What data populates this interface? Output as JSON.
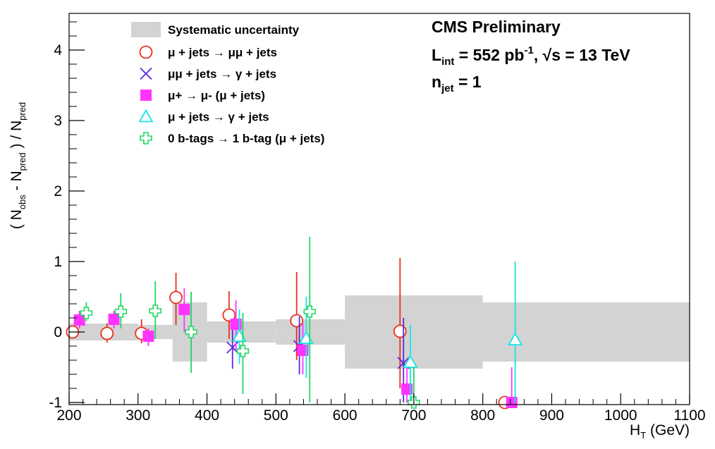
{
  "chart_data": {
    "type": "scatter",
    "x_range": [
      200,
      1100
    ],
    "y_range": [
      -1,
      4.5
    ],
    "x_ticks": [
      200,
      300,
      400,
      500,
      600,
      700,
      800,
      900,
      1000,
      1100
    ],
    "y_ticks": [
      -1,
      0,
      1,
      2,
      3,
      4
    ],
    "xlabel_main": "H",
    "xlabel_sub": "T",
    "xlabel_tail": " (GeV)",
    "ylabel_parts": {
      "open": "( N",
      "obs_sub": "obs",
      "mid": " - N",
      "pred_sub1": "pred",
      "close": " ) / N",
      "pred_sub2": "pred"
    },
    "annotations": {
      "line1": "CMS Preliminary",
      "lumi_L": "L",
      "lumi_sub": "int",
      "lumi_mid": " = 552 pb",
      "lumi_sup": "-1",
      "lumi_rest": ",  √s = 13 TeV",
      "njet_n": "n",
      "njet_sub": "jet",
      "njet_rest": " = 1"
    },
    "systematic_band": {
      "name": "Systematic uncertainty",
      "color": "#d3d3d3",
      "bins": [
        {
          "x1": 200,
          "x2": 250,
          "lo": -0.12,
          "hi": 0.12
        },
        {
          "x1": 250,
          "x2": 300,
          "lo": -0.12,
          "hi": 0.12
        },
        {
          "x1": 300,
          "x2": 350,
          "lo": -0.1,
          "hi": 0.1
        },
        {
          "x1": 350,
          "x2": 400,
          "lo": -0.42,
          "hi": 0.42
        },
        {
          "x1": 400,
          "x2": 450,
          "lo": -0.15,
          "hi": 0.15
        },
        {
          "x1": 450,
          "x2": 500,
          "lo": -0.15,
          "hi": 0.15
        },
        {
          "x1": 500,
          "x2": 550,
          "lo": -0.18,
          "hi": 0.18
        },
        {
          "x1": 550,
          "x2": 600,
          "lo": -0.18,
          "hi": 0.18
        },
        {
          "x1": 600,
          "x2": 800,
          "lo": -0.52,
          "hi": 0.52
        },
        {
          "x1": 800,
          "x2": 1100,
          "lo": -0.42,
          "hi": 0.42
        }
      ]
    },
    "series": [
      {
        "name": "μ + jets → μμ + jets",
        "marker": "circle",
        "color": "#e8301c",
        "points": [
          {
            "x": 205,
            "y": 0.0,
            "lo": -0.05,
            "hi": 0.06
          },
          {
            "x": 255,
            "y": -0.02,
            "lo": -0.15,
            "hi": 0.12
          },
          {
            "x": 305,
            "y": -0.02,
            "lo": -0.16,
            "hi": 0.18
          },
          {
            "x": 355,
            "y": 0.49,
            "lo": 0.1,
            "hi": 0.84
          },
          {
            "x": 432,
            "y": 0.24,
            "lo": -0.1,
            "hi": 0.58
          },
          {
            "x": 530,
            "y": 0.16,
            "lo": -0.4,
            "hi": 0.85
          },
          {
            "x": 680,
            "y": 0.01,
            "lo": -0.8,
            "hi": 1.05
          },
          {
            "x": 832,
            "y": -1.0,
            "lo": -1.0,
            "hi": -1.0
          }
        ]
      },
      {
        "name": "μμ + jets → γ + jets",
        "marker": "cross",
        "color": "#5c27e0",
        "points": [
          {
            "x": 437,
            "y": -0.22,
            "lo": -0.52,
            "hi": 0.1
          },
          {
            "x": 534,
            "y": -0.2,
            "lo": -0.6,
            "hi": 0.22
          },
          {
            "x": 685,
            "y": -0.44,
            "lo": -1.0,
            "hi": 0.2
          }
        ]
      },
      {
        "name": "μ+ → μ- (μ + jets)",
        "marker": "square",
        "color": "#ff33ff",
        "points": [
          {
            "x": 215,
            "y": 0.17,
            "lo": 0.05,
            "hi": 0.3
          },
          {
            "x": 265,
            "y": 0.18,
            "lo": 0.05,
            "hi": 0.3
          },
          {
            "x": 315,
            "y": -0.06,
            "lo": -0.2,
            "hi": 0.05
          },
          {
            "x": 367,
            "y": 0.32,
            "lo": 0.0,
            "hi": 0.62
          },
          {
            "x": 442,
            "y": 0.11,
            "lo": -0.25,
            "hi": 0.45
          },
          {
            "x": 539,
            "y": -0.26,
            "lo": -0.6,
            "hi": 0.12
          },
          {
            "x": 690,
            "y": -0.81,
            "lo": -1.0,
            "hi": -0.4
          },
          {
            "x": 842,
            "y": -1.0,
            "lo": -1.0,
            "hi": -0.5
          }
        ]
      },
      {
        "name": "μ + jets → γ + jets",
        "marker": "triangle",
        "color": "#16e5e5",
        "points": [
          {
            "x": 447,
            "y": -0.06,
            "lo": -0.45,
            "hi": 0.32
          },
          {
            "x": 544,
            "y": -0.09,
            "lo": -0.65,
            "hi": 0.5
          },
          {
            "x": 695,
            "y": -0.43,
            "lo": -1.0,
            "hi": 0.1
          },
          {
            "x": 847,
            "y": -0.11,
            "lo": -1.0,
            "hi": 1.0
          }
        ]
      },
      {
        "name": "0 b-tags → 1 b-tag (μ + jets)",
        "marker": "plus",
        "color": "#1ed760",
        "points": [
          {
            "x": 225,
            "y": 0.27,
            "lo": 0.15,
            "hi": 0.42
          },
          {
            "x": 275,
            "y": 0.29,
            "lo": 0.05,
            "hi": 0.55
          },
          {
            "x": 325,
            "y": 0.3,
            "lo": -0.1,
            "hi": 0.72
          },
          {
            "x": 377,
            "y": 0.0,
            "lo": -0.58,
            "hi": 0.57
          },
          {
            "x": 452,
            "y": -0.27,
            "lo": -0.88,
            "hi": 0.27
          },
          {
            "x": 549,
            "y": 0.29,
            "lo": -1.0,
            "hi": 1.35
          },
          {
            "x": 700,
            "y": -1.0,
            "lo": -1.0,
            "hi": -0.5
          }
        ]
      }
    ]
  }
}
